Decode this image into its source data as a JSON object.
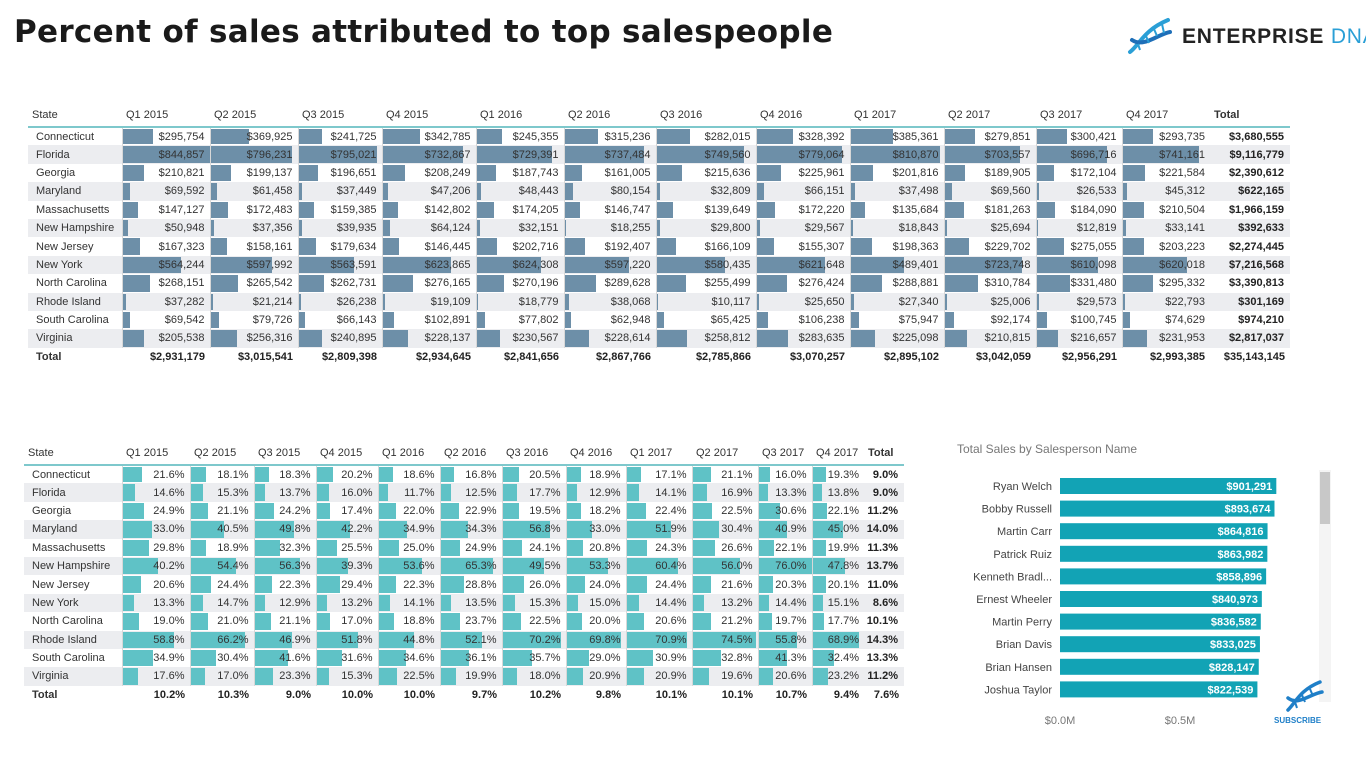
{
  "title": "Percent of sales attributed to top salespeople",
  "brand": {
    "name_main": "ENTERPRISE",
    "name_accent": "DNA",
    "logo_icon": "dna-helix-icon",
    "accent_color": "#2a9fd6"
  },
  "sales_table": {
    "headers": [
      "State",
      "Q1 2015",
      "Q2 2015",
      "Q3 2015",
      "Q4 2015",
      "Q1 2016",
      "Q2 2016",
      "Q3 2016",
      "Q4 2016",
      "Q1 2017",
      "Q2 2017",
      "Q3 2017",
      "Q4 2017",
      "Total"
    ],
    "bar_color": "#6d8fa8",
    "rows": [
      {
        "state": "Connecticut",
        "values": [
          "$295,754",
          "$369,925",
          "$241,725",
          "$342,785",
          "$245,355",
          "$315,236",
          "$282,015",
          "$328,392",
          "$385,361",
          "$279,851",
          "$300,421",
          "$293,735"
        ],
        "total": "$3,680,555"
      },
      {
        "state": "Florida",
        "values": [
          "$844,857",
          "$796,231",
          "$795,021",
          "$732,867",
          "$729,391",
          "$737,484",
          "$749,560",
          "$779,064",
          "$810,870",
          "$703,557",
          "$696,716",
          "$741,161"
        ],
        "total": "$9,116,779"
      },
      {
        "state": "Georgia",
        "values": [
          "$210,821",
          "$199,137",
          "$196,651",
          "$208,249",
          "$187,743",
          "$161,005",
          "$215,636",
          "$225,961",
          "$201,816",
          "$189,905",
          "$172,104",
          "$221,584"
        ],
        "total": "$2,390,612"
      },
      {
        "state": "Maryland",
        "values": [
          "$69,592",
          "$61,458",
          "$37,449",
          "$47,206",
          "$48,443",
          "$80,154",
          "$32,809",
          "$66,151",
          "$37,498",
          "$69,560",
          "$26,533",
          "$45,312"
        ],
        "total": "$622,165"
      },
      {
        "state": "Massachusetts",
        "values": [
          "$147,127",
          "$172,483",
          "$159,385",
          "$142,802",
          "$174,205",
          "$146,747",
          "$139,649",
          "$172,220",
          "$135,684",
          "$181,263",
          "$184,090",
          "$210,504"
        ],
        "total": "$1,966,159"
      },
      {
        "state": "New Hampshire",
        "values": [
          "$50,948",
          "$37,356",
          "$39,935",
          "$64,124",
          "$32,151",
          "$18,255",
          "$29,800",
          "$29,567",
          "$18,843",
          "$25,694",
          "$12,819",
          "$33,141"
        ],
        "total": "$392,633"
      },
      {
        "state": "New Jersey",
        "values": [
          "$167,323",
          "$158,161",
          "$179,634",
          "$146,445",
          "$202,716",
          "$192,407",
          "$166,109",
          "$155,307",
          "$198,363",
          "$229,702",
          "$275,055",
          "$203,223"
        ],
        "total": "$2,274,445"
      },
      {
        "state": "New York",
        "values": [
          "$564,244",
          "$597,992",
          "$563,591",
          "$623,865",
          "$624,308",
          "$597,220",
          "$580,435",
          "$621,648",
          "$489,401",
          "$723,748",
          "$610,098",
          "$620,018"
        ],
        "total": "$7,216,568"
      },
      {
        "state": "North Carolina",
        "values": [
          "$268,151",
          "$265,542",
          "$262,731",
          "$276,165",
          "$270,196",
          "$289,628",
          "$255,499",
          "$276,424",
          "$288,881",
          "$310,784",
          "$331,480",
          "$295,332"
        ],
        "total": "$3,390,813"
      },
      {
        "state": "Rhode Island",
        "values": [
          "$37,282",
          "$21,214",
          "$26,238",
          "$19,109",
          "$18,779",
          "$38,068",
          "$10,117",
          "$25,650",
          "$27,340",
          "$25,006",
          "$29,573",
          "$22,793"
        ],
        "total": "$301,169"
      },
      {
        "state": "South Carolina",
        "values": [
          "$69,542",
          "$79,726",
          "$66,143",
          "$102,891",
          "$77,802",
          "$62,948",
          "$65,425",
          "$106,238",
          "$75,947",
          "$92,174",
          "$100,745",
          "$74,629"
        ],
        "total": "$974,210"
      },
      {
        "state": "Virginia",
        "values": [
          "$205,538",
          "$256,316",
          "$240,895",
          "$228,137",
          "$230,567",
          "$228,614",
          "$258,812",
          "$283,635",
          "$225,098",
          "$210,815",
          "$216,657",
          "$231,953"
        ],
        "total": "$2,817,037"
      }
    ],
    "total_row": {
      "label": "Total",
      "values": [
        "$2,931,179",
        "$3,015,541",
        "$2,809,398",
        "$2,934,645",
        "$2,841,656",
        "$2,867,766",
        "$2,785,866",
        "$3,070,257",
        "$2,895,102",
        "$3,042,059",
        "$2,956,291",
        "$2,993,385"
      ],
      "total": "$35,143,145"
    }
  },
  "percent_table": {
    "headers": [
      "State",
      "Q1 2015",
      "Q2 2015",
      "Q3 2015",
      "Q4 2015",
      "Q1 2016",
      "Q2 2016",
      "Q3 2016",
      "Q4 2016",
      "Q1 2017",
      "Q2 2017",
      "Q3 2017",
      "Q4 2017",
      "Total"
    ],
    "bar_color": "#5fc2c6",
    "rows": [
      {
        "state": "Connecticut",
        "values": [
          "21.6%",
          "18.1%",
          "18.3%",
          "20.2%",
          "18.6%",
          "16.8%",
          "20.5%",
          "18.9%",
          "17.1%",
          "21.1%",
          "16.0%",
          "19.3%"
        ],
        "total": "9.0%"
      },
      {
        "state": "Florida",
        "values": [
          "14.6%",
          "15.3%",
          "13.7%",
          "16.0%",
          "11.7%",
          "12.5%",
          "17.7%",
          "12.9%",
          "14.1%",
          "16.9%",
          "13.3%",
          "13.8%"
        ],
        "total": "9.0%"
      },
      {
        "state": "Georgia",
        "values": [
          "24.9%",
          "21.1%",
          "24.2%",
          "17.4%",
          "22.0%",
          "22.9%",
          "19.5%",
          "18.2%",
          "22.4%",
          "22.5%",
          "30.6%",
          "22.1%"
        ],
        "total": "11.2%"
      },
      {
        "state": "Maryland",
        "values": [
          "33.0%",
          "40.5%",
          "49.8%",
          "42.2%",
          "34.9%",
          "34.3%",
          "56.8%",
          "33.0%",
          "51.9%",
          "30.4%",
          "40.9%",
          "45.0%"
        ],
        "total": "14.0%"
      },
      {
        "state": "Massachusetts",
        "values": [
          "29.8%",
          "18.9%",
          "32.3%",
          "25.5%",
          "25.0%",
          "24.9%",
          "24.1%",
          "20.8%",
          "24.3%",
          "26.6%",
          "22.1%",
          "19.9%"
        ],
        "total": "11.3%"
      },
      {
        "state": "New Hampshire",
        "values": [
          "40.2%",
          "54.4%",
          "56.3%",
          "39.3%",
          "53.6%",
          "65.3%",
          "49.5%",
          "53.3%",
          "60.4%",
          "56.0%",
          "76.0%",
          "47.8%"
        ],
        "total": "13.7%"
      },
      {
        "state": "New Jersey",
        "values": [
          "20.6%",
          "24.4%",
          "22.3%",
          "29.4%",
          "22.3%",
          "28.8%",
          "26.0%",
          "24.0%",
          "24.4%",
          "21.6%",
          "20.3%",
          "20.1%"
        ],
        "total": "11.0%"
      },
      {
        "state": "New York",
        "values": [
          "13.3%",
          "14.7%",
          "12.9%",
          "13.2%",
          "14.1%",
          "13.5%",
          "15.3%",
          "15.0%",
          "14.4%",
          "13.2%",
          "14.4%",
          "15.1%"
        ],
        "total": "8.6%"
      },
      {
        "state": "North Carolina",
        "values": [
          "19.0%",
          "21.0%",
          "21.1%",
          "17.0%",
          "18.8%",
          "23.7%",
          "22.5%",
          "20.0%",
          "20.6%",
          "21.2%",
          "19.7%",
          "17.7%"
        ],
        "total": "10.1%"
      },
      {
        "state": "Rhode Island",
        "values": [
          "58.8%",
          "66.2%",
          "46.9%",
          "51.8%",
          "44.8%",
          "52.1%",
          "70.2%",
          "69.8%",
          "70.9%",
          "74.5%",
          "55.8%",
          "68.9%"
        ],
        "total": "14.3%"
      },
      {
        "state": "South Carolina",
        "values": [
          "34.9%",
          "30.4%",
          "41.6%",
          "31.6%",
          "34.6%",
          "36.1%",
          "35.7%",
          "29.0%",
          "30.9%",
          "32.8%",
          "41.3%",
          "32.4%"
        ],
        "total": "13.3%"
      },
      {
        "state": "Virginia",
        "values": [
          "17.6%",
          "17.0%",
          "23.3%",
          "15.3%",
          "22.5%",
          "19.9%",
          "18.0%",
          "20.9%",
          "20.9%",
          "19.6%",
          "20.6%",
          "23.2%"
        ],
        "total": "11.2%"
      }
    ],
    "total_row": {
      "label": "Total",
      "values": [
        "10.2%",
        "10.3%",
        "9.0%",
        "10.0%",
        "10.0%",
        "9.7%",
        "10.2%",
        "9.8%",
        "10.1%",
        "10.1%",
        "10.7%",
        "9.4%"
      ],
      "total": "7.6%"
    }
  },
  "salesperson_chart": {
    "title": "Total Sales by Salesperson Name",
    "chart_data": {
      "type": "bar",
      "orientation": "horizontal",
      "categories": [
        "Ryan Welch",
        "Bobby Russell",
        "Martin Carr",
        "Patrick Ruiz",
        "Kenneth Bradl...",
        "Ernest Wheeler",
        "Martin Perry",
        "Brian Davis",
        "Brian Hansen",
        "Joshua Taylor"
      ],
      "values": [
        901291,
        893674,
        864816,
        863982,
        858896,
        840973,
        836582,
        833025,
        828147,
        822539
      ],
      "data_labels": [
        "$901,291",
        "$893,674",
        "$864,816",
        "$863,982",
        "$858,896",
        "$840,973",
        "$836,582",
        "$833,025",
        "$828,147",
        "$822,539"
      ],
      "x_ticks": [
        {
          "value": 0,
          "label": "$0.0M"
        },
        {
          "value": 500000,
          "label": "$0.5M"
        }
      ],
      "xlim": [
        0,
        1000000
      ],
      "bar_color": "#12a3b5",
      "grid": false
    }
  },
  "subscribe": {
    "label": "SUBSCRIBE",
    "icon": "dna-helix-icon"
  }
}
